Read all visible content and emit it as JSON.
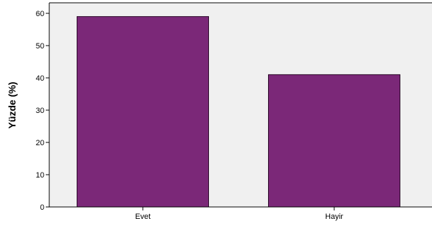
{
  "chart_data": {
    "type": "bar",
    "title": "",
    "xlabel": "",
    "ylabel": "Yüzde (%)",
    "categories": [
      "Evet",
      "Hayir"
    ],
    "values": [
      59,
      41
    ],
    "ylim": [
      0,
      60
    ],
    "yticks": [
      0,
      10,
      20,
      30,
      40,
      50,
      60
    ],
    "grid": false,
    "colors": {
      "bar_fill": "#7B2878",
      "bar_stroke": "#2a0a28",
      "plot_background": "#F0F0F0",
      "axis": "#000000"
    }
  }
}
